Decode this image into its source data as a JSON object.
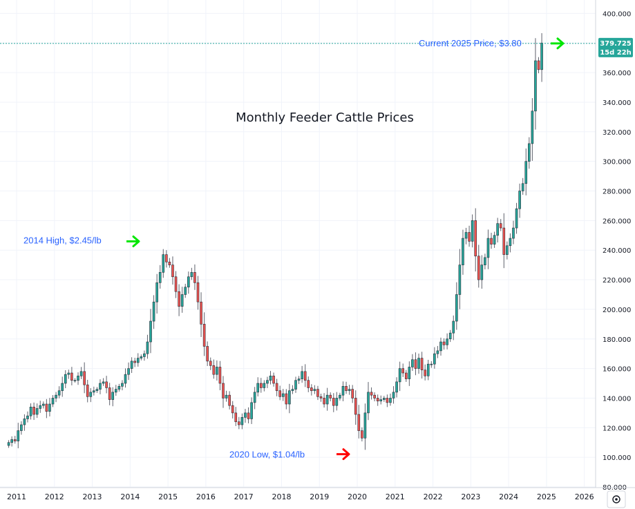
{
  "chart_data": {
    "type": "candlestick",
    "title": "Monthly Feeder Cattle Prices",
    "frequency": "monthly",
    "ylim": [
      80,
      405
    ],
    "y_ticks": [
      80,
      100,
      120,
      140,
      160,
      180,
      200,
      220,
      240,
      260,
      280,
      300,
      320,
      340,
      360,
      380,
      400
    ],
    "y_tick_labels": [
      "80.000",
      "100.000",
      "120.000",
      "140.000",
      "160.000",
      "180.000",
      "200.000",
      "220.000",
      "240.000",
      "260.000",
      "280.000",
      "300.000",
      "320.000",
      "340.000",
      "360.000",
      "380.000",
      "400.000"
    ],
    "x_tick_labels": [
      "2011",
      "2012",
      "2013",
      "2014",
      "2015",
      "2016",
      "2017",
      "2018",
      "2019",
      "2020",
      "2021",
      "2022",
      "2023",
      "2024",
      "2025",
      "2026"
    ],
    "grid": true,
    "colors": {
      "up": "#26a69a",
      "down": "#ef5350",
      "wick": "#5d606b",
      "price_line": "#26a69a",
      "badge": "#26a69a",
      "annotation": "#2962ff"
    },
    "current_price_label": "379.725",
    "countdown_label": "15d 22h",
    "annotations": [
      {
        "text": "2014 High, $2.45/lb",
        "arrow": "right",
        "arrow_color": "#00e600",
        "value": 245
      },
      {
        "text": "2020 Low, $1.04/lb",
        "arrow": "right",
        "arrow_color": "#ff0000",
        "value": 104
      },
      {
        "text": "Current 2025 Price, $3.80",
        "arrow": "right",
        "arrow_color": "#00e600",
        "value": 379.725
      }
    ],
    "series": [
      {
        "start": "2010-10",
        "close": [
          110,
          112,
          111,
          118,
          122,
          126,
          128,
          134,
          129,
          133,
          135,
          136,
          131,
          136,
          140,
          142,
          145,
          150,
          156,
          157,
          152,
          152,
          155,
          158,
          149,
          141,
          144,
          145,
          146,
          150,
          151,
          147,
          139,
          144,
          146,
          148,
          150,
          156,
          160,
          165,
          164,
          167,
          168,
          170,
          178,
          192,
          205,
          218,
          225,
          237,
          232,
          230,
          222,
          212,
          202,
          210,
          215,
          222,
          225,
          218,
          205,
          190,
          175,
          165,
          162,
          156,
          161,
          150,
          140,
          142,
          135,
          130,
          124,
          122,
          127,
          130,
          126,
          137,
          144,
          150,
          147,
          150,
          152,
          155,
          150,
          145,
          141,
          143,
          136,
          145,
          146,
          152,
          153,
          158,
          152,
          147,
          145,
          146,
          141,
          140,
          136,
          142,
          140,
          135,
          140,
          142,
          148,
          145,
          146,
          140,
          129,
          118,
          113,
          130,
          144,
          142,
          140,
          138,
          139,
          140,
          137,
          140,
          144,
          151,
          160,
          157,
          153,
          161,
          166,
          160,
          167,
          159,
          155,
          163,
          163,
          170,
          172,
          178,
          176,
          180,
          184,
          192,
          210,
          230,
          248,
          252,
          246,
          260,
          236,
          220,
          230,
          235,
          248,
          244,
          250,
          258,
          255,
          237,
          243,
          248,
          255,
          268,
          280,
          285,
          300,
          312,
          334,
          368,
          362,
          380
        ]
      }
    ]
  }
}
